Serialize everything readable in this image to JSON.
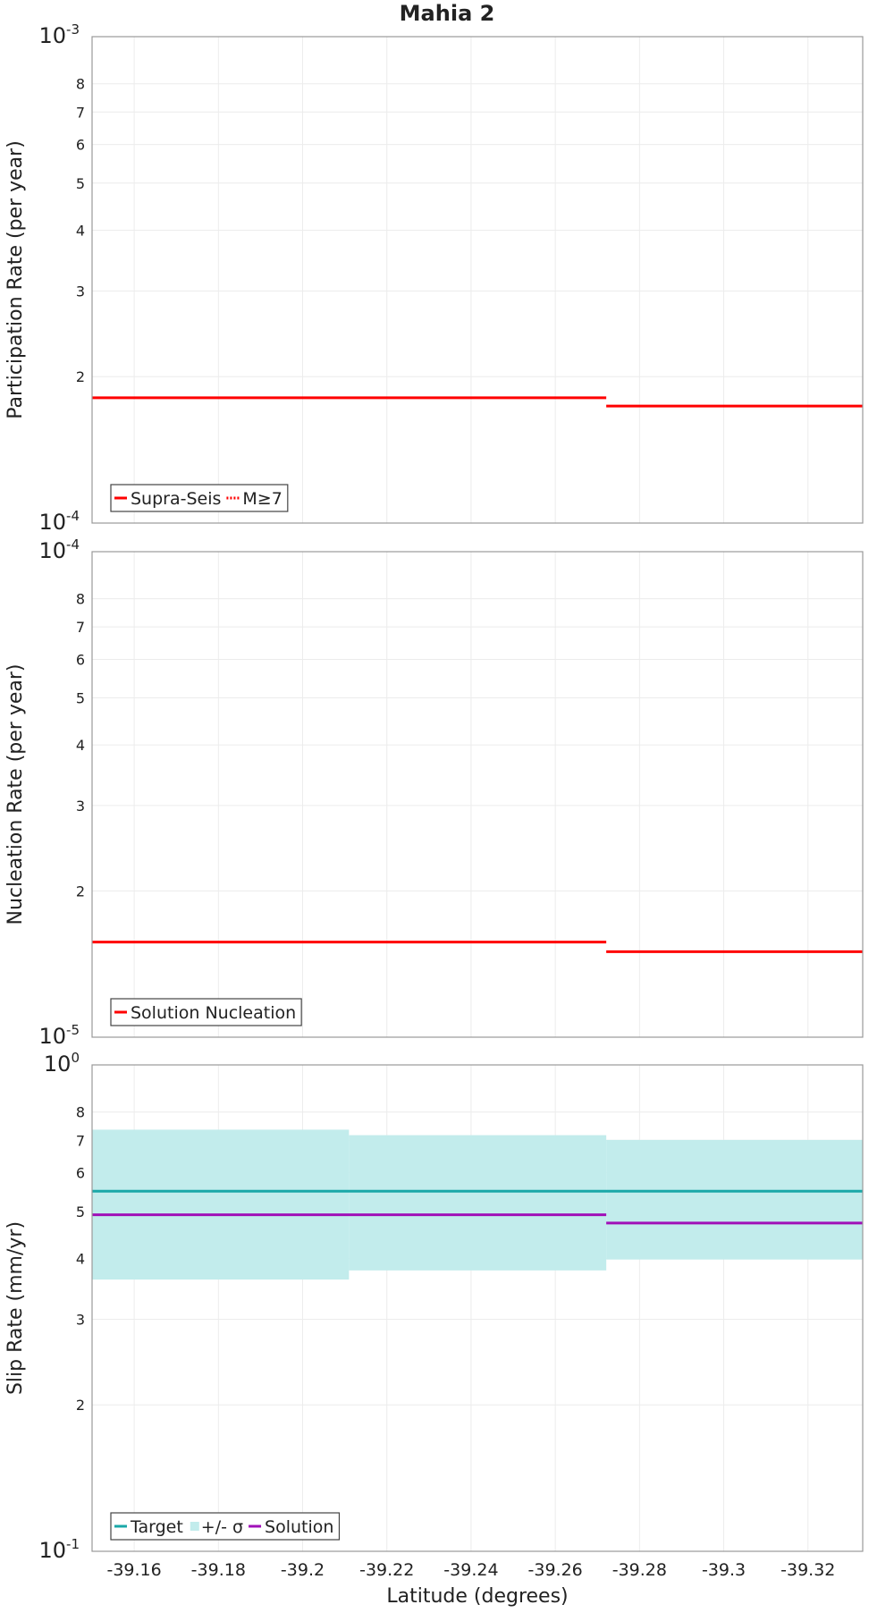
{
  "chart_data": {
    "type": "line",
    "title": "Mahia 2",
    "xlabel": "Latitude (degrees)",
    "xlim": [
      -39.15,
      -39.333
    ],
    "x_ticks": [
      -39.16,
      -39.18,
      -39.2,
      -39.22,
      -39.24,
      -39.26,
      -39.28,
      -39.3,
      -39.32
    ],
    "x_tick_labels": [
      "-39.16",
      "-39.18",
      "-39.2",
      "-39.22",
      "-39.24",
      "-39.26",
      "-39.28",
      "-39.3",
      "-39.32"
    ],
    "panels": [
      {
        "name": "participation",
        "ylabel": "Participation Rate (per year)",
        "yscale": "log",
        "ylim": [
          0.0001,
          0.001
        ],
        "major_labels": [
          {
            "base": "10",
            "exp": "-4"
          },
          {
            "base": "10",
            "exp": "-3"
          }
        ],
        "minor_ticks": [
          2,
          3,
          4,
          5,
          6,
          7,
          8
        ],
        "minor_labels": [
          "2",
          "3",
          "4",
          "5",
          "6",
          "7",
          "8"
        ],
        "series": [
          {
            "name": "Supra-Seis",
            "color": "#ff0000",
            "style": "solid",
            "segments": [
              {
                "x0": -39.15,
                "x1": -39.2721,
                "y": 0.000181
              },
              {
                "x0": -39.2721,
                "x1": -39.333,
                "y": 0.000174
              }
            ]
          },
          {
            "name": "M≥7",
            "color": "#ff0000",
            "style": "dotted",
            "segments": []
          }
        ],
        "bands": [],
        "legend": [
          {
            "label": "Supra-Seis",
            "kind": "line",
            "color": "#ff0000",
            "style": "solid"
          },
          {
            "label": "M≥7",
            "kind": "line",
            "color": "#ff0000",
            "style": "dotted"
          }
        ],
        "legend_position": "bottom-left"
      },
      {
        "name": "nucleation",
        "ylabel": "Nucleation Rate (per year)",
        "yscale": "log",
        "ylim": [
          1e-05,
          0.0001
        ],
        "major_labels": [
          {
            "base": "10",
            "exp": "-5"
          },
          {
            "base": "10",
            "exp": "-4"
          }
        ],
        "minor_ticks": [
          2,
          3,
          4,
          5,
          6,
          7,
          8
        ],
        "minor_labels": [
          "2",
          "3",
          "4",
          "5",
          "6",
          "7",
          "8"
        ],
        "series": [
          {
            "name": "Solution Nucleation",
            "color": "#ff0000",
            "style": "solid",
            "segments": [
              {
                "x0": -39.15,
                "x1": -39.2721,
                "y": 1.57e-05
              },
              {
                "x0": -39.2721,
                "x1": -39.333,
                "y": 1.5e-05
              }
            ]
          }
        ],
        "bands": [],
        "legend": [
          {
            "label": "Solution Nucleation",
            "kind": "line",
            "color": "#ff0000",
            "style": "solid"
          }
        ],
        "legend_position": "bottom-left"
      },
      {
        "name": "slip",
        "ylabel": "Slip Rate (mm/yr)",
        "yscale": "log",
        "ylim": [
          0.1,
          1.0
        ],
        "major_labels": [
          {
            "base": "10",
            "exp": "-1"
          },
          {
            "base": "10",
            "exp": "0"
          }
        ],
        "minor_ticks": [
          2,
          3,
          4,
          5,
          6,
          7,
          8
        ],
        "minor_labels": [
          "2",
          "3",
          "4",
          "5",
          "6",
          "7",
          "8"
        ],
        "series": [
          {
            "name": "Target",
            "color": "#1aa8a8",
            "style": "solid",
            "segments": [
              {
                "x0": -39.15,
                "x1": -39.333,
                "y": 0.55
              }
            ]
          },
          {
            "name": "Solution",
            "color": "#a010b8",
            "style": "solid",
            "segments": [
              {
                "x0": -39.15,
                "x1": -39.2721,
                "y": 0.492
              },
              {
                "x0": -39.2721,
                "x1": -39.333,
                "y": 0.473
              }
            ]
          }
        ],
        "bands": [
          {
            "name": "+/- σ",
            "color": "#c2ecec",
            "segments": [
              {
                "x0": -39.15,
                "x1": -39.211,
                "low": 0.362,
                "high": 0.736
              },
              {
                "x0": -39.211,
                "x1": -39.2721,
                "low": 0.378,
                "high": 0.717
              },
              {
                "x0": -39.2721,
                "x1": -39.333,
                "low": 0.398,
                "high": 0.701
              }
            ]
          }
        ],
        "legend": [
          {
            "label": "Target",
            "kind": "line",
            "color": "#1aa8a8",
            "style": "solid"
          },
          {
            "label": "+/- σ",
            "kind": "box",
            "color": "#c2ecec",
            "style": "solid"
          },
          {
            "label": "Solution",
            "kind": "line",
            "color": "#a010b8",
            "style": "solid"
          }
        ],
        "legend_position": "bottom-left"
      }
    ]
  }
}
